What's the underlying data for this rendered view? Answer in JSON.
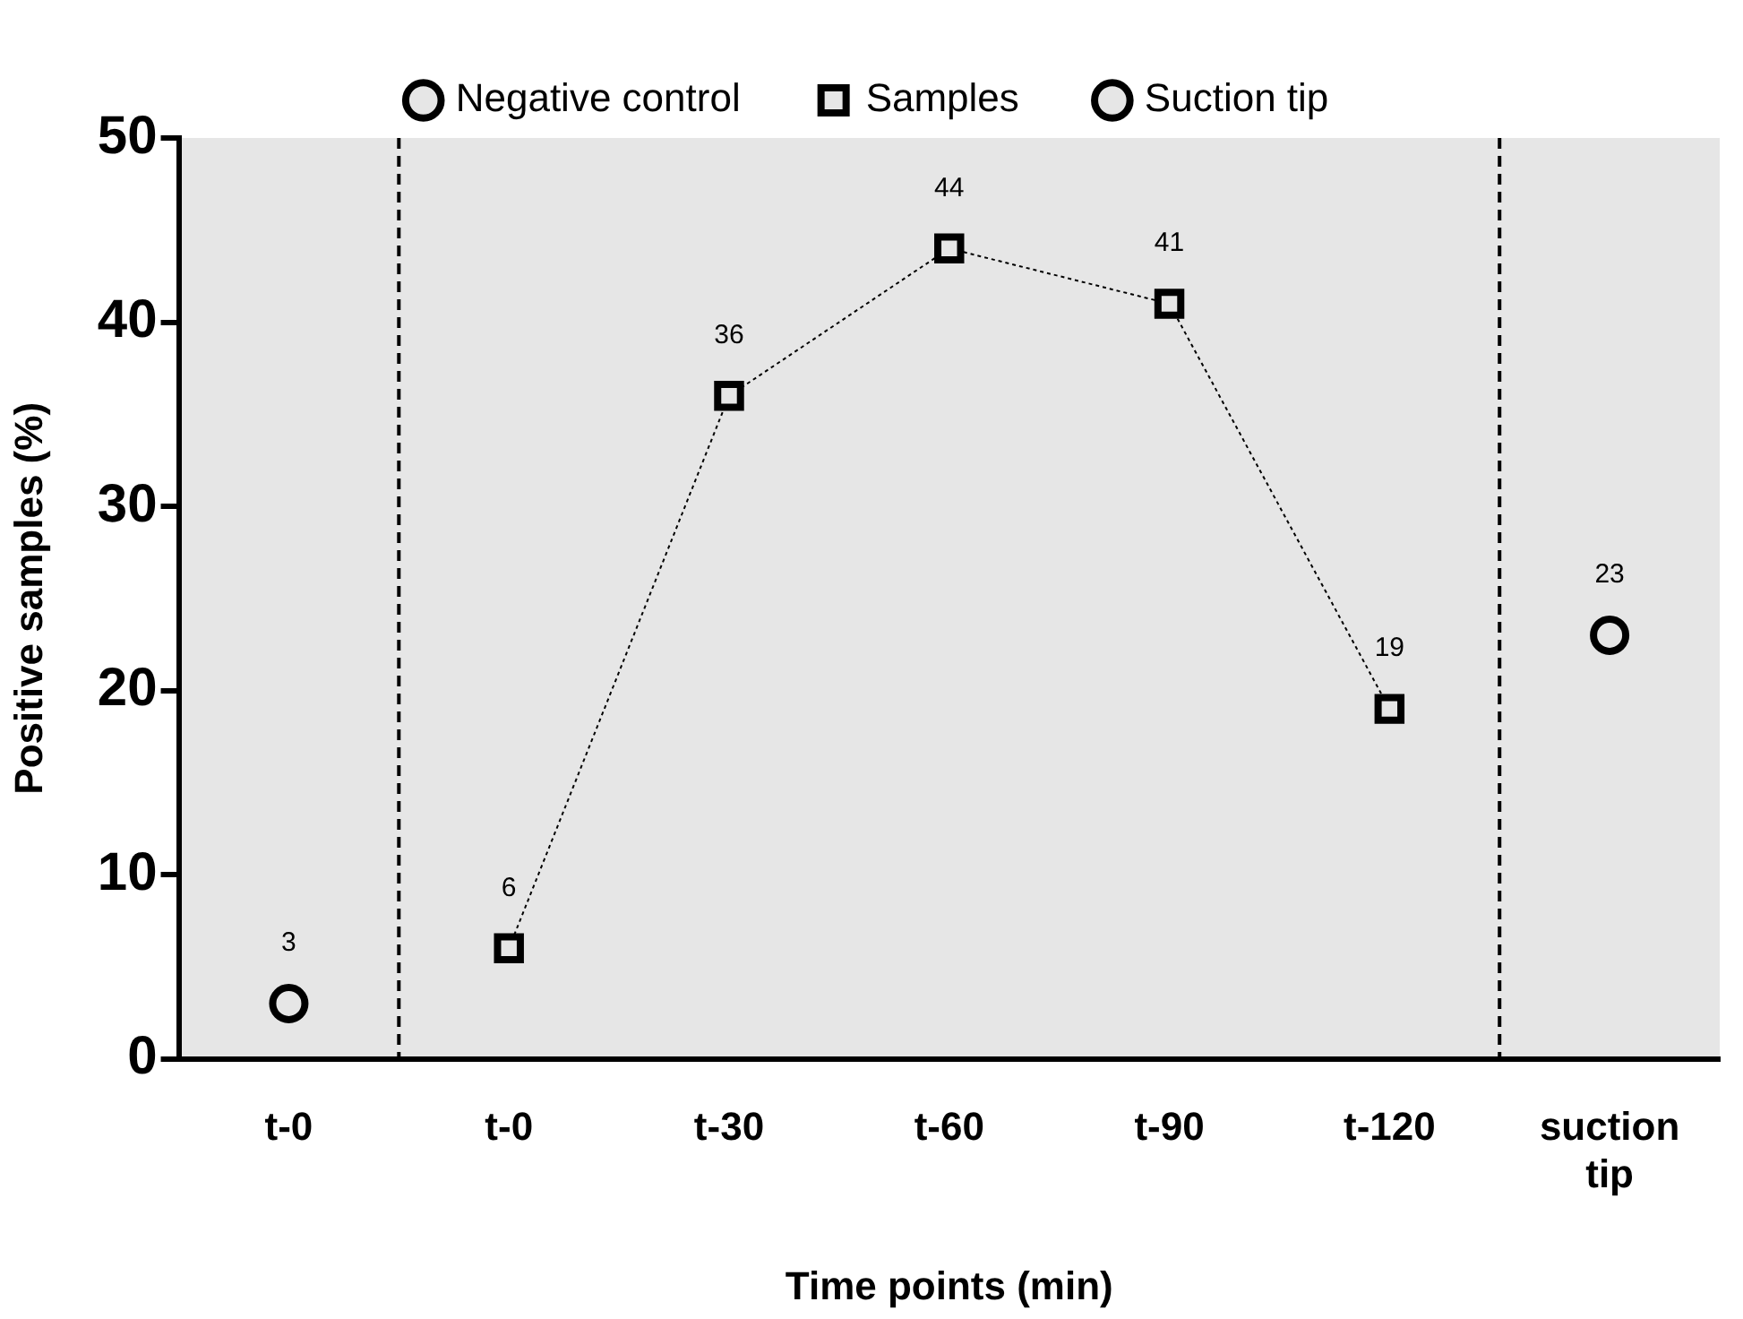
{
  "chart_data": {
    "type": "line",
    "xlabel": "Time points (min)",
    "ylabel": "Positive samples (%)",
    "categories": [
      "t-0",
      "t-0",
      "t-30",
      "t-60",
      "t-90",
      "t-120",
      "suction tip"
    ],
    "series": [
      {
        "name": "Negative control",
        "type": "scatter",
        "color": "#000000",
        "marker": "circle",
        "values": [
          3,
          null,
          null,
          null,
          null,
          null,
          null
        ]
      },
      {
        "name": "Samples",
        "type": "line",
        "color": "#000000",
        "marker": "square",
        "line_style": "dotted",
        "values": [
          null,
          6,
          36,
          44,
          41,
          19,
          null
        ]
      },
      {
        "name": "Suction tip",
        "type": "scatter",
        "color": "#000000",
        "marker": "circle",
        "values": [
          null,
          null,
          null,
          null,
          null,
          null,
          23
        ]
      }
    ],
    "ylim": [
      0,
      50
    ],
    "yticks": [
      0,
      10,
      20,
      30,
      40,
      50
    ],
    "data_labels": true,
    "grid": false,
    "legend": "top"
  }
}
